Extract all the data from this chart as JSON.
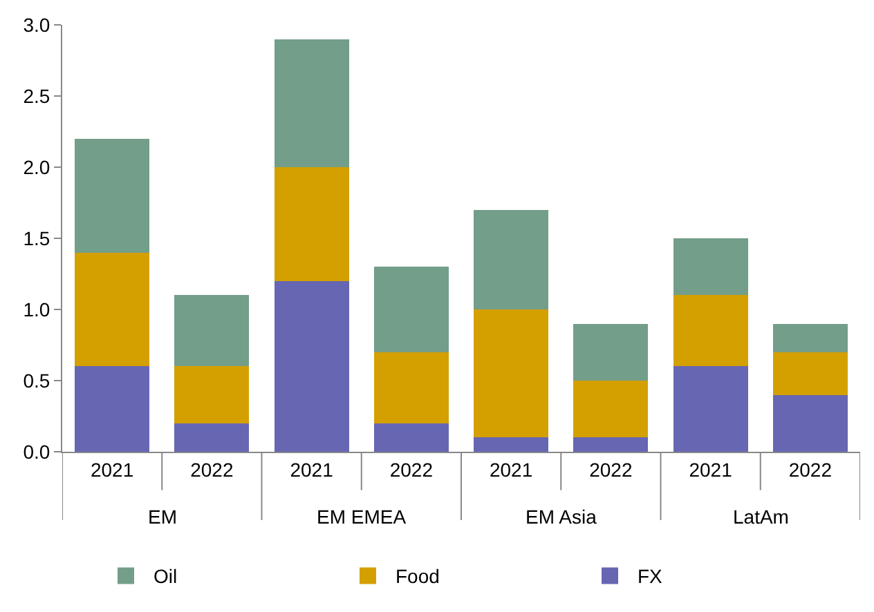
{
  "chart_data": {
    "type": "bar",
    "stacked": true,
    "categories": [
      "2021",
      "2022",
      "2021",
      "2022",
      "2021",
      "2022",
      "2021",
      "2022"
    ],
    "series": [
      {
        "name": "FX",
        "color": "#6666b3",
        "values": [
          0.6,
          0.2,
          1.2,
          0.2,
          0.1,
          0.1,
          0.6,
          0.4
        ]
      },
      {
        "name": "Food",
        "color": "#d4a000",
        "values": [
          0.8,
          0.4,
          0.8,
          0.5,
          0.9,
          0.4,
          0.5,
          0.3
        ]
      },
      {
        "name": "Oil",
        "color": "#739e89",
        "values": [
          0.8,
          0.5,
          0.9,
          0.6,
          0.7,
          0.4,
          0.4,
          0.2
        ]
      }
    ],
    "annotations": [
      "EM",
      "EM EMEA",
      "EM Asia",
      "LatAm"
    ],
    "ylim": [
      0,
      3.0
    ],
    "yticks": [
      {
        "value": 0,
        "label": "0.0"
      },
      0.5,
      {
        "value": 1,
        "label": "1.0"
      },
      1.5,
      {
        "value": 2,
        "label": "2.0"
      },
      2.5,
      {
        "value": 3,
        "label": "3.0"
      }
    ],
    "legend": "bottom"
  }
}
